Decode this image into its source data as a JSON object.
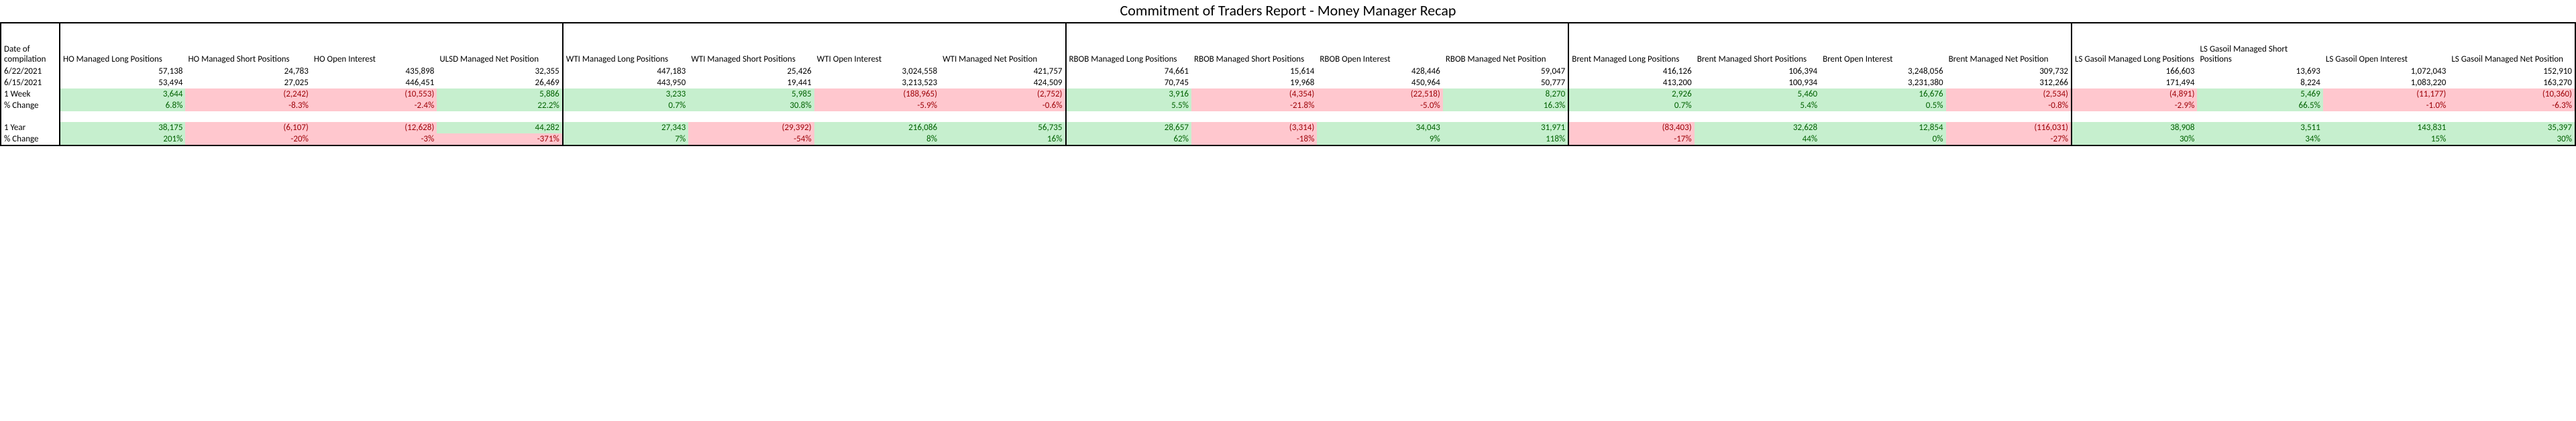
{
  "title": "Commitment of Traders Report - Money Manager Recap",
  "row_labels": {
    "date_header": "Date of compilation",
    "d1": "6/22/2021",
    "d2": "6/15/2021",
    "wk": "1 Week",
    "wkpct": "% Change",
    "yr": "1 Year",
    "yrpct": "% Change"
  },
  "groups": [
    {
      "cols": [
        {
          "h": "HO Managed Long Positions",
          "d1": "57,138",
          "d2": "53,494",
          "wk": "3,644",
          "wkc": "pos",
          "wkpct": "6.8%",
          "wkpctc": "pos",
          "yr": "38,175",
          "yrc": "pos",
          "yrpct": "201%",
          "yrpctc": "pos"
        },
        {
          "h": "HO Managed Short Positions",
          "d1": "24,783",
          "d2": "27,025",
          "wk": "(2,242)",
          "wkc": "neg",
          "wkpct": "-8.3%",
          "wkpctc": "neg",
          "yr": "(6,107)",
          "yrc": "neg",
          "yrpct": "-20%",
          "yrpctc": "neg"
        },
        {
          "h": "HO Open Interest",
          "d1": "435,898",
          "d2": "446,451",
          "wk": "(10,553)",
          "wkc": "neg",
          "wkpct": "-2.4%",
          "wkpctc": "neg",
          "yr": "(12,628)",
          "yrc": "neg",
          "yrpct": "-3%",
          "yrpctc": "neg"
        },
        {
          "h": "ULSD Managed Net Position",
          "d1": "32,355",
          "d2": "26,469",
          "wk": "5,886",
          "wkc": "pos",
          "wkpct": "22.2%",
          "wkpctc": "pos",
          "yr": "44,282",
          "yrc": "pos",
          "yrpct": "-371%",
          "yrpctc": "neg"
        }
      ]
    },
    {
      "cols": [
        {
          "h": "WTI Managed Long Positions",
          "d1": "447,183",
          "d2": "443,950",
          "wk": "3,233",
          "wkc": "pos",
          "wkpct": "0.7%",
          "wkpctc": "pos",
          "yr": "27,343",
          "yrc": "pos",
          "yrpct": "7%",
          "yrpctc": "pos"
        },
        {
          "h": "WTI Managed Short Positions",
          "d1": "25,426",
          "d2": "19,441",
          "wk": "5,985",
          "wkc": "pos",
          "wkpct": "30.8%",
          "wkpctc": "pos",
          "yr": "(29,392)",
          "yrc": "neg",
          "yrpct": "-54%",
          "yrpctc": "neg"
        },
        {
          "h": "WTI Open Interest",
          "d1": "3,024,558",
          "d2": "3,213,523",
          "wk": "(188,965)",
          "wkc": "neg",
          "wkpct": "-5.9%",
          "wkpctc": "neg",
          "yr": "216,086",
          "yrc": "pos",
          "yrpct": "8%",
          "yrpctc": "pos"
        },
        {
          "h": "WTI Managed Net Position",
          "d1": "421,757",
          "d2": "424,509",
          "wk": "(2,752)",
          "wkc": "neg",
          "wkpct": "-0.6%",
          "wkpctc": "neg",
          "yr": "56,735",
          "yrc": "pos",
          "yrpct": "16%",
          "yrpctc": "pos"
        }
      ]
    },
    {
      "cols": [
        {
          "h": "RBOB Managed Long Positions",
          "d1": "74,661",
          "d2": "70,745",
          "wk": "3,916",
          "wkc": "pos",
          "wkpct": "5.5%",
          "wkpctc": "pos",
          "yr": "28,657",
          "yrc": "pos",
          "yrpct": "62%",
          "yrpctc": "pos"
        },
        {
          "h": "RBOB Managed Short Positions",
          "d1": "15,614",
          "d2": "19,968",
          "wk": "(4,354)",
          "wkc": "neg",
          "wkpct": "-21.8%",
          "wkpctc": "neg",
          "yr": "(3,314)",
          "yrc": "neg",
          "yrpct": "-18%",
          "yrpctc": "neg"
        },
        {
          "h": "RBOB Open Interest",
          "d1": "428,446",
          "d2": "450,964",
          "wk": "(22,518)",
          "wkc": "neg",
          "wkpct": "-5.0%",
          "wkpctc": "neg",
          "yr": "34,043",
          "yrc": "pos",
          "yrpct": "9%",
          "yrpctc": "pos"
        },
        {
          "h": "RBOB Managed Net Position",
          "d1": "59,047",
          "d2": "50,777",
          "wk": "8,270",
          "wkc": "pos",
          "wkpct": "16.3%",
          "wkpctc": "pos",
          "yr": "31,971",
          "yrc": "pos",
          "yrpct": "118%",
          "yrpctc": "pos"
        }
      ]
    },
    {
      "cols": [
        {
          "h": "Brent Managed Long Positions",
          "d1": "416,126",
          "d2": "413,200",
          "wk": "2,926",
          "wkc": "pos",
          "wkpct": "0.7%",
          "wkpctc": "pos",
          "yr": "(83,403)",
          "yrc": "neg",
          "yrpct": "-17%",
          "yrpctc": "neg"
        },
        {
          "h": "Brent Managed Short Positions",
          "d1": "106,394",
          "d2": "100,934",
          "wk": "5,460",
          "wkc": "pos",
          "wkpct": "5.4%",
          "wkpctc": "pos",
          "yr": "32,628",
          "yrc": "pos",
          "yrpct": "44%",
          "yrpctc": "pos"
        },
        {
          "h": "Brent Open Interest",
          "d1": "3,248,056",
          "d2": "3,231,380",
          "wk": "16,676",
          "wkc": "pos",
          "wkpct": "0.5%",
          "wkpctc": "pos",
          "yr": "12,854",
          "yrc": "pos",
          "yrpct": "0%",
          "yrpctc": "pos"
        },
        {
          "h": "Brent Managed Net Position",
          "d1": "309,732",
          "d2": "312,266",
          "wk": "(2,534)",
          "wkc": "neg",
          "wkpct": "-0.8%",
          "wkpctc": "neg",
          "yr": "(116,031)",
          "yrc": "neg",
          "yrpct": "-27%",
          "yrpctc": "neg"
        }
      ]
    },
    {
      "cols": [
        {
          "h": "LS Gasoil Managed Long Positions",
          "d1": "166,603",
          "d2": "171,494",
          "wk": "(4,891)",
          "wkc": "neg",
          "wkpct": "-2.9%",
          "wkpctc": "neg",
          "yr": "38,908",
          "yrc": "pos",
          "yrpct": "30%",
          "yrpctc": "pos"
        },
        {
          "h": "LS Gasoil Managed Short Positions",
          "d1": "13,693",
          "d2": "8,224",
          "wk": "5,469",
          "wkc": "pos",
          "wkpct": "66.5%",
          "wkpctc": "pos",
          "yr": "3,511",
          "yrc": "pos",
          "yrpct": "34%",
          "yrpctc": "pos"
        },
        {
          "h": "LS Gasoil Open Interest",
          "d1": "1,072,043",
          "d2": "1,083,220",
          "wk": "(11,177)",
          "wkc": "neg",
          "wkpct": "-1.0%",
          "wkpctc": "neg",
          "yr": "143,831",
          "yrc": "pos",
          "yrpct": "15%",
          "yrpctc": "pos"
        },
        {
          "h": "LS Gasoil Managed Net Position",
          "d1": "152,910",
          "d2": "163,270",
          "wk": "(10,360)",
          "wkc": "neg",
          "wkpct": "-6.3%",
          "wkpctc": "neg",
          "yr": "35,397",
          "yrc": "pos",
          "yrpct": "30%",
          "yrpctc": "pos"
        }
      ]
    }
  ],
  "colors": {
    "pos_bg": "#c6efce",
    "pos_fg": "#006100",
    "neg_bg": "#ffc7ce",
    "neg_fg": "#9c0006"
  }
}
